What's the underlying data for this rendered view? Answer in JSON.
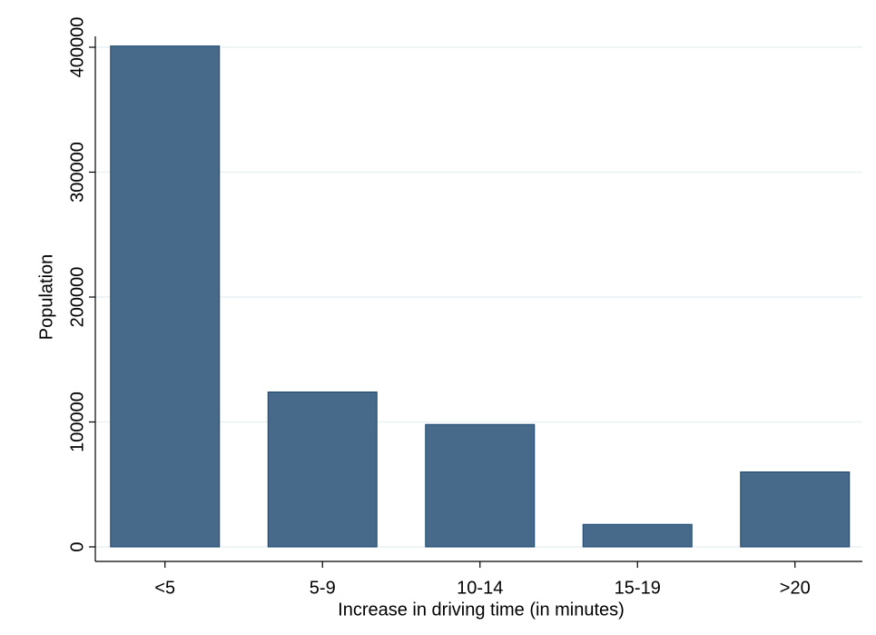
{
  "chart_data": {
    "type": "bar",
    "x_label": "Increase in driving time (in minutes)",
    "y_label": "Population",
    "categories": [
      "<5",
      "5-9",
      "10-14",
      "15-19",
      ">20"
    ],
    "values": [
      401000,
      124000,
      98000,
      18000,
      60000
    ],
    "color": "#486a8a",
    "ylim": [
      0,
      400000
    ],
    "yticks": [
      0,
      100000,
      200000,
      300000,
      400000
    ],
    "grid": true
  }
}
